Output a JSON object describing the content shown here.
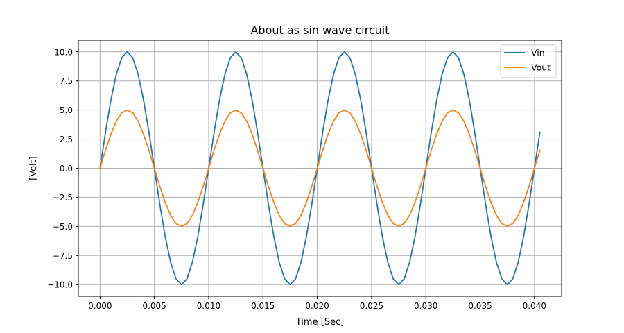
{
  "chart_data": {
    "type": "line",
    "title": "About as  sin wave circuit",
    "xlabel": "Time [Sec]",
    "ylabel": "[Volt]",
    "xlim": [
      -0.002,
      0.0425
    ],
    "ylim": [
      -11,
      11
    ],
    "grid": true,
    "legend_position": "top-right",
    "x_ticks": [
      0.0,
      0.005,
      0.01,
      0.015,
      0.02,
      0.025,
      0.03,
      0.035,
      0.04
    ],
    "x_tick_labels": [
      "0.000",
      "0.005",
      "0.010",
      "0.015",
      "0.020",
      "0.025",
      "0.030",
      "0.035",
      "0.040"
    ],
    "y_ticks": [
      -10,
      -7.5,
      -5,
      -2.5,
      0,
      2.5,
      5,
      7.5,
      10
    ],
    "y_tick_labels": [
      "−10.0",
      "−7.5",
      "−5.0",
      "−2.5",
      "0.0",
      "2.5",
      "5.0",
      "7.5",
      "10.0"
    ],
    "x": [
      0.0,
      0.0005,
      0.001,
      0.0015,
      0.002,
      0.0025,
      0.003,
      0.0035,
      0.004,
      0.0045,
      0.005,
      0.0055,
      0.006,
      0.0065,
      0.007,
      0.0075,
      0.008,
      0.0085,
      0.009,
      0.0095,
      0.01,
      0.0105,
      0.011,
      0.0115,
      0.012,
      0.0125,
      0.013,
      0.0135,
      0.014,
      0.0145,
      0.015,
      0.0155,
      0.016,
      0.0165,
      0.017,
      0.0175,
      0.018,
      0.0185,
      0.019,
      0.0195,
      0.02,
      0.0205,
      0.021,
      0.0215,
      0.022,
      0.0225,
      0.023,
      0.0235,
      0.024,
      0.0245,
      0.025,
      0.0255,
      0.026,
      0.0265,
      0.027,
      0.0275,
      0.028,
      0.0285,
      0.029,
      0.0295,
      0.03,
      0.0305,
      0.031,
      0.0315,
      0.032,
      0.0325,
      0.033,
      0.0335,
      0.034,
      0.0345,
      0.035,
      0.0355,
      0.036,
      0.0365,
      0.037,
      0.0375,
      0.038,
      0.0385,
      0.039,
      0.0395,
      0.04,
      0.0405
    ],
    "series": [
      {
        "name": "Vin",
        "color": "#1f77b4",
        "values": [
          0.0,
          3.09,
          5.88,
          8.09,
          9.51,
          10.0,
          9.51,
          8.09,
          5.88,
          3.09,
          0.0,
          -3.09,
          -5.88,
          -8.09,
          -9.51,
          -10.0,
          -9.51,
          -8.09,
          -5.88,
          -3.09,
          0.0,
          3.09,
          5.88,
          8.09,
          9.51,
          10.0,
          9.51,
          8.09,
          5.88,
          3.09,
          0.0,
          -3.09,
          -5.88,
          -8.09,
          -9.51,
          -10.0,
          -9.51,
          -8.09,
          -5.88,
          -3.09,
          0.0,
          3.09,
          5.88,
          8.09,
          9.51,
          10.0,
          9.51,
          8.09,
          5.88,
          3.09,
          0.0,
          -3.09,
          -5.88,
          -8.09,
          -9.51,
          -10.0,
          -9.51,
          -8.09,
          -5.88,
          -3.09,
          0.0,
          3.09,
          5.88,
          8.09,
          9.51,
          10.0,
          9.51,
          8.09,
          5.88,
          3.09,
          0.0,
          -3.09,
          -5.88,
          -8.09,
          -9.51,
          -10.0,
          -9.51,
          -8.09,
          -5.88,
          -3.09,
          0.0,
          3.09
        ]
      },
      {
        "name": "Vout",
        "color": "#ff7f0e",
        "values": [
          0.0,
          1.55,
          2.94,
          4.05,
          4.76,
          5.0,
          4.76,
          4.05,
          2.94,
          1.55,
          0.0,
          -1.55,
          -2.94,
          -4.05,
          -4.76,
          -5.0,
          -4.76,
          -4.05,
          -2.94,
          -1.55,
          0.0,
          1.55,
          2.94,
          4.05,
          4.76,
          5.0,
          4.76,
          4.05,
          2.94,
          1.55,
          0.0,
          -1.55,
          -2.94,
          -4.05,
          -4.76,
          -5.0,
          -4.76,
          -4.05,
          -2.94,
          -1.55,
          0.0,
          1.55,
          2.94,
          4.05,
          4.76,
          5.0,
          4.76,
          4.05,
          2.94,
          1.55,
          0.0,
          -1.55,
          -2.94,
          -4.05,
          -4.76,
          -5.0,
          -4.76,
          -4.05,
          -2.94,
          -1.55,
          0.0,
          1.55,
          2.94,
          4.05,
          4.76,
          5.0,
          4.76,
          4.05,
          2.94,
          1.55,
          0.0,
          -1.55,
          -2.94,
          -4.05,
          -4.76,
          -5.0,
          -4.76,
          -4.05,
          -2.94,
          -1.55,
          0.0,
          1.55
        ]
      }
    ]
  }
}
